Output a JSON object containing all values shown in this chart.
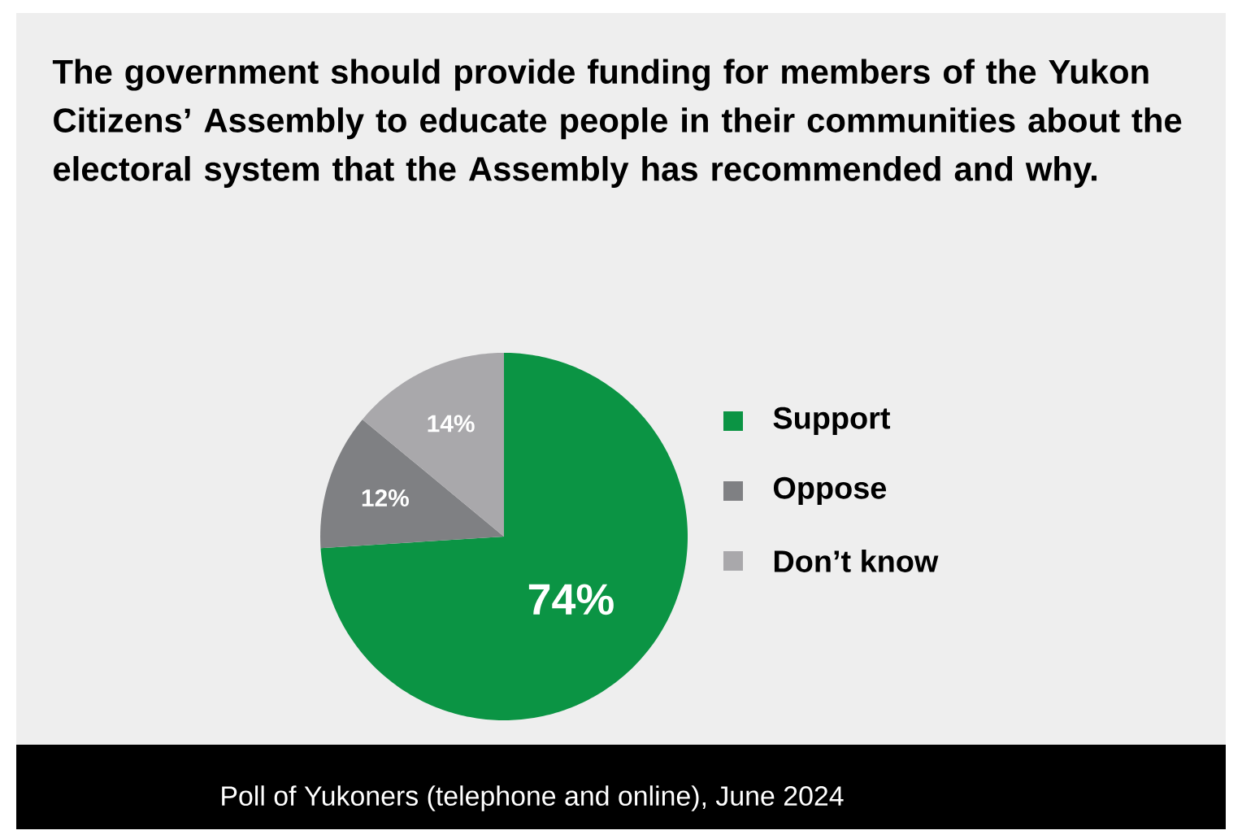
{
  "chart_data": {
    "type": "pie",
    "title": "The government should provide funding for members of the Yukon Citizens’ Assembly to educate people in their communities about the electoral system that the Assembly has recommended and why.",
    "categories": [
      "Support",
      "Oppose",
      "Don’t know"
    ],
    "values": [
      74,
      12,
      14
    ],
    "colors": [
      "#0b9444",
      "#7f8083",
      "#a9a8ab"
    ],
    "value_labels": [
      "74%",
      "12%",
      "14%"
    ],
    "legend": "right",
    "annotations": [
      "Poll of Yukoners (telephone and online), June 2024"
    ]
  }
}
